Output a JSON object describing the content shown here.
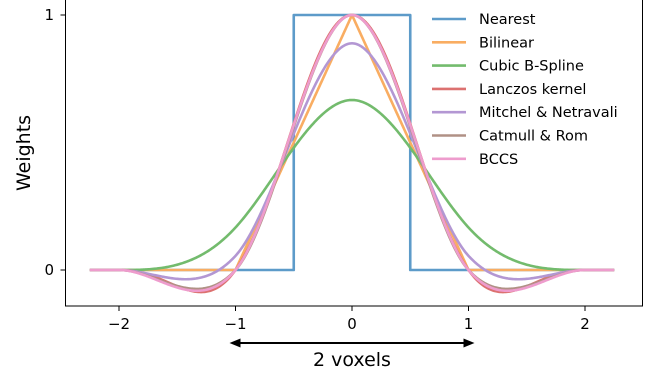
{
  "chart_data": {
    "type": "line",
    "ylabel": "Weights",
    "xlim": [
      -2.4,
      2.4
    ],
    "ylim": [
      -0.14,
      1.05
    ],
    "grid": false,
    "legend_position": "top-right",
    "x_ticks": [
      {
        "value": -2,
        "label": "−2"
      },
      {
        "value": -1,
        "label": "−1"
      },
      {
        "value": 0,
        "label": "0"
      },
      {
        "value": 1,
        "label": "1"
      },
      {
        "value": 2,
        "label": "2"
      }
    ],
    "y_ticks": [
      {
        "value": 0,
        "label": "0"
      },
      {
        "value": 1,
        "label": "1"
      }
    ],
    "annotation": {
      "text": "2 voxels",
      "from": -1,
      "to": 1,
      "style": "double-arrow"
    },
    "series": [
      {
        "name": "Nearest",
        "color": "#5d9bc9",
        "kernel": "nearest",
        "x_range": [
          -2.25,
          2.25
        ]
      },
      {
        "name": "Bilinear",
        "color": "#f9ad62",
        "kernel": "bilinear",
        "x_range": [
          -2.25,
          2.25
        ]
      },
      {
        "name": "Cubic B-Spline",
        "color": "#73bb6d",
        "kernel": "bspline",
        "x_range": [
          -2.25,
          2.25
        ]
      },
      {
        "name": "Lanczos kernel",
        "color": "#dc7170",
        "kernel": "lanczos",
        "x_range": [
          -2.25,
          2.25
        ]
      },
      {
        "name": "Mitchel & Netravali",
        "color": "#b397d3",
        "kernel": "mitchell",
        "x_range": [
          -2.25,
          2.25
        ]
      },
      {
        "name": "Catmull & Rom",
        "color": "#b09185",
        "kernel": "catmull",
        "x_range": [
          -2.25,
          2.25
        ]
      },
      {
        "name": "BCCS",
        "color": "#ee9ccd",
        "kernel": "bccs",
        "x_range": [
          -2.25,
          2.25
        ]
      }
    ]
  }
}
